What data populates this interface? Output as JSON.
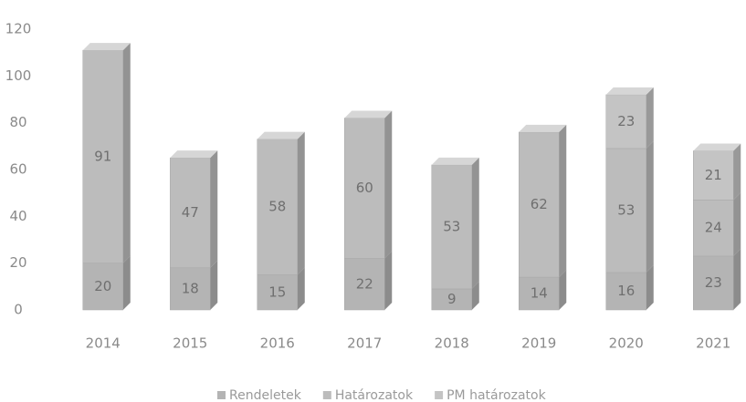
{
  "chart_data": {
    "type": "bar",
    "stacked": true,
    "categories": [
      "2014",
      "2015",
      "2016",
      "2017",
      "2018",
      "2019",
      "2020",
      "2021"
    ],
    "series": [
      {
        "name": "Rendeletek",
        "color": "#b4b4b4",
        "values": [
          20,
          18,
          15,
          22,
          9,
          14,
          16,
          23
        ]
      },
      {
        "name": "Határozatok",
        "color": "#bcbcbc",
        "values": [
          91,
          47,
          58,
          60,
          53,
          62,
          53,
          24
        ]
      },
      {
        "name": "PM határozatok",
        "color": "#c4c4c4",
        "values": [
          null,
          null,
          null,
          null,
          null,
          null,
          23,
          21
        ]
      }
    ],
    "ylim": [
      0,
      120
    ],
    "yticks": [
      0,
      20,
      40,
      60,
      80,
      100,
      120
    ],
    "grid": false,
    "legend": "bottom"
  }
}
